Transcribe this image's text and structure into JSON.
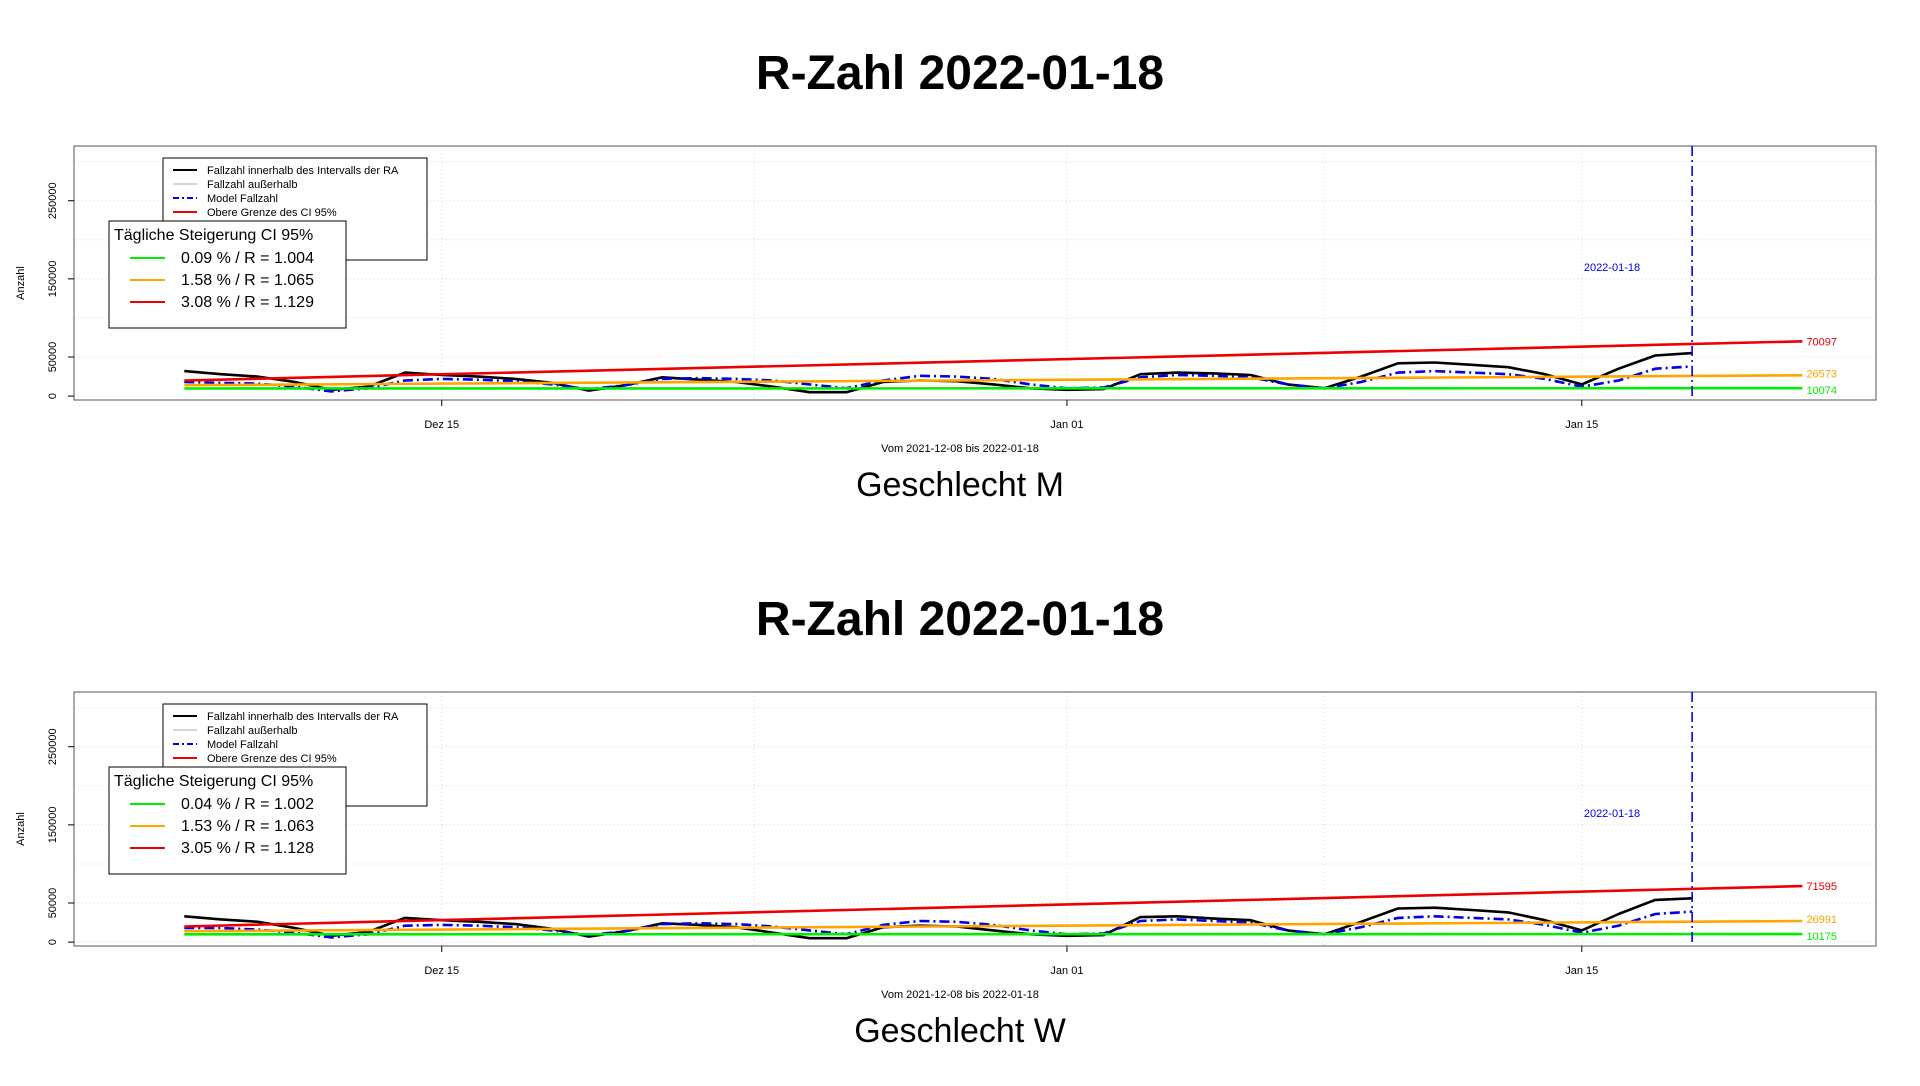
{
  "chart_data": [
    {
      "type": "line",
      "title": "R-Zahl 2022-01-18",
      "subtitle": "Geschlecht M",
      "xlabel": "Vom 2021-12-08 bis 2022-01-18",
      "ylabel": "Anzahl",
      "x_range": [
        "2021-12-05",
        "2022-01-23"
      ],
      "ylim": [
        -5000,
        320000
      ],
      "x_ticks": [
        {
          "date": "2021-12-15",
          "label": "Dez 15"
        },
        {
          "date": "2022-01-01",
          "label": "Jan 01"
        },
        {
          "date": "2022-01-15",
          "label": "Jan 15"
        }
      ],
      "y_ticks": [
        0,
        50000,
        150000,
        250000
      ],
      "grid": true,
      "vline": {
        "date": "2022-01-18",
        "label": "2022-01-18",
        "color": "#0000ee"
      },
      "series": [
        {
          "name": "Fallzahl innerhalb des Intervalls der RA",
          "color": "#000000",
          "style": "solid",
          "x": [
            "2021-12-08",
            "2021-12-09",
            "2021-12-10",
            "2021-12-11",
            "2021-12-12",
            "2021-12-13",
            "2021-12-14",
            "2021-12-15",
            "2021-12-16",
            "2021-12-17",
            "2021-12-18",
            "2021-12-19",
            "2021-12-20",
            "2021-12-21",
            "2021-12-22",
            "2021-12-23",
            "2021-12-24",
            "2021-12-25",
            "2021-12-26",
            "2021-12-27",
            "2021-12-28",
            "2021-12-29",
            "2021-12-30",
            "2021-12-31",
            "2022-01-01",
            "2022-01-02",
            "2022-01-03",
            "2022-01-04",
            "2022-01-05",
            "2022-01-06",
            "2022-01-07",
            "2022-01-08",
            "2022-01-09",
            "2022-01-10",
            "2022-01-11",
            "2022-01-12",
            "2022-01-13",
            "2022-01-14",
            "2022-01-15",
            "2022-01-16",
            "2022-01-17",
            "2022-01-18"
          ],
          "y": [
            32000,
            28000,
            25000,
            18000,
            8000,
            12000,
            30000,
            27000,
            25000,
            22000,
            17000,
            7000,
            14000,
            24000,
            21000,
            18000,
            12000,
            5000,
            5000,
            18000,
            20000,
            19000,
            15000,
            10000,
            8000,
            9000,
            28000,
            30000,
            29000,
            27000,
            15000,
            10000,
            25000,
            42000,
            43000,
            40000,
            37000,
            28000,
            15000,
            35000,
            52000,
            55000
          ]
        },
        {
          "name": "Fallzahl außerhalb",
          "color": "#aaaaaa",
          "style": "solid",
          "x": [],
          "y": []
        },
        {
          "name": "Model Fallzahl",
          "color": "#0000ee",
          "style": "dashdot",
          "x": [
            "2021-12-08",
            "2021-12-09",
            "2021-12-10",
            "2021-12-11",
            "2021-12-12",
            "2021-12-13",
            "2021-12-14",
            "2021-12-15",
            "2021-12-16",
            "2021-12-17",
            "2021-12-18",
            "2021-12-19",
            "2021-12-20",
            "2021-12-21",
            "2021-12-22",
            "2021-12-23",
            "2021-12-24",
            "2021-12-25",
            "2021-12-26",
            "2021-12-27",
            "2021-12-28",
            "2021-12-29",
            "2021-12-30",
            "2021-12-31",
            "2022-01-01",
            "2022-01-02",
            "2022-01-03",
            "2022-01-04",
            "2022-01-05",
            "2022-01-06",
            "2022-01-07",
            "2022-01-08",
            "2022-01-09",
            "2022-01-10",
            "2022-01-11",
            "2022-01-12",
            "2022-01-13",
            "2022-01-14",
            "2022-01-15",
            "2022-01-16",
            "2022-01-17",
            "2022-01-18"
          ],
          "y": [
            18000,
            17000,
            16000,
            12000,
            6000,
            10000,
            20000,
            22000,
            21000,
            19000,
            15000,
            9000,
            14000,
            22000,
            23000,
            22000,
            20000,
            15000,
            10000,
            20000,
            26000,
            25000,
            22000,
            15000,
            10000,
            11000,
            24000,
            27000,
            26000,
            24000,
            15000,
            10000,
            18000,
            30000,
            32000,
            30000,
            28000,
            22000,
            12000,
            20000,
            35000,
            38000
          ]
        },
        {
          "name": "Obere Grenze des CI 95%",
          "color": "#ee0000",
          "style": "solid",
          "x": [
            "2021-12-08",
            "2022-01-21"
          ],
          "y": [
            20000,
            70097
          ]
        },
        {
          "name": "0.09 % / R = 1.004",
          "color": "#00ee00",
          "style": "solid",
          "x": [
            "2021-12-08",
            "2022-01-21"
          ],
          "y": [
            9700,
            10074
          ]
        },
        {
          "name": "1.58 % / R = 1.065",
          "color": "#ffa500",
          "style": "solid",
          "x": [
            "2021-12-08",
            "2022-01-21"
          ],
          "y": [
            14000,
            26573
          ]
        },
        {
          "name": "3.08 % / R = 1.129",
          "color": "#ee0000",
          "style": "solid",
          "x": [],
          "y": []
        }
      ],
      "end_labels": [
        {
          "value": 70097,
          "text": "70097",
          "color": "#ee0000"
        },
        {
          "value": 26573,
          "text": "26573",
          "color": "#ffa500"
        },
        {
          "value": 10074,
          "text": "10074",
          "color": "#00ee00"
        }
      ],
      "legend_main": {
        "placement": "top-left",
        "entries": [
          {
            "text": "Fallzahl innerhalb des Intervalls der RA",
            "color": "#000000",
            "style": "solid"
          },
          {
            "text": "Fallzahl außerhalb",
            "color": "#aaaaaa",
            "style": "solid"
          },
          {
            "text": "Model Fallzahl",
            "color": "#0000ee",
            "style": "dashdot"
          },
          {
            "text": "Obere Grenze des CI 95%",
            "color": "#ee0000",
            "style": "solid"
          }
        ]
      },
      "legend_ci": {
        "title": "Tägliche Steigerung CI  95%",
        "entries": [
          {
            "text": "0.09 % / R = 1.004",
            "color": "#00ee00"
          },
          {
            "text": "1.58 % / R = 1.065",
            "color": "#ffa500"
          },
          {
            "text": "3.08 % / R = 1.129",
            "color": "#ee0000"
          }
        ]
      }
    },
    {
      "type": "line",
      "title": "R-Zahl 2022-01-18",
      "subtitle": "Geschlecht W",
      "xlabel": "Vom 2021-12-08 bis 2022-01-18",
      "ylabel": "Anzahl",
      "x_range": [
        "2021-12-05",
        "2022-01-23"
      ],
      "ylim": [
        -5000,
        320000
      ],
      "x_ticks": [
        {
          "date": "2021-12-15",
          "label": "Dez 15"
        },
        {
          "date": "2022-01-01",
          "label": "Jan 01"
        },
        {
          "date": "2022-01-15",
          "label": "Jan 15"
        }
      ],
      "y_ticks": [
        0,
        50000,
        150000,
        250000
      ],
      "grid": true,
      "vline": {
        "date": "2022-01-18",
        "label": "2022-01-18",
        "color": "#0000ee"
      },
      "series": [
        {
          "name": "Fallzahl innerhalb des Intervalls der RA",
          "color": "#000000",
          "style": "solid",
          "x": [
            "2021-12-08",
            "2021-12-09",
            "2021-12-10",
            "2021-12-11",
            "2021-12-12",
            "2021-12-13",
            "2021-12-14",
            "2021-12-15",
            "2021-12-16",
            "2021-12-17",
            "2021-12-18",
            "2021-12-19",
            "2021-12-20",
            "2021-12-21",
            "2021-12-22",
            "2021-12-23",
            "2021-12-24",
            "2021-12-25",
            "2021-12-26",
            "2021-12-27",
            "2021-12-28",
            "2021-12-29",
            "2021-12-30",
            "2021-12-31",
            "2022-01-01",
            "2022-01-02",
            "2022-01-03",
            "2022-01-04",
            "2022-01-05",
            "2022-01-06",
            "2022-01-07",
            "2022-01-08",
            "2022-01-09",
            "2022-01-10",
            "2022-01-11",
            "2022-01-12",
            "2022-01-13",
            "2022-01-14",
            "2022-01-15",
            "2022-01-16",
            "2022-01-17",
            "2022-01-18"
          ],
          "y": [
            33000,
            29000,
            26000,
            18000,
            8000,
            13000,
            31000,
            28000,
            26000,
            23000,
            17000,
            7000,
            14000,
            24000,
            22000,
            19000,
            12000,
            5000,
            5000,
            19000,
            21000,
            20000,
            15000,
            10000,
            8000,
            9000,
            32000,
            33000,
            30000,
            28000,
            15000,
            10000,
            26000,
            43000,
            44000,
            41000,
            38000,
            28000,
            15000,
            36000,
            54000,
            56000
          ]
        },
        {
          "name": "Fallzahl außerhalb",
          "color": "#aaaaaa",
          "style": "solid",
          "x": [],
          "y": []
        },
        {
          "name": "Model Fallzahl",
          "color": "#0000ee",
          "style": "dashdot",
          "x": [
            "2021-12-08",
            "2021-12-09",
            "2021-12-10",
            "2021-12-11",
            "2021-12-12",
            "2021-12-13",
            "2021-12-14",
            "2021-12-15",
            "2021-12-16",
            "2021-12-17",
            "2021-12-18",
            "2021-12-19",
            "2021-12-20",
            "2021-12-21",
            "2021-12-22",
            "2021-12-23",
            "2021-12-24",
            "2021-12-25",
            "2021-12-26",
            "2021-12-27",
            "2021-12-28",
            "2021-12-29",
            "2021-12-30",
            "2021-12-31",
            "2022-01-01",
            "2022-01-02",
            "2022-01-03",
            "2022-01-04",
            "2022-01-05",
            "2022-01-06",
            "2022-01-07",
            "2022-01-08",
            "2022-01-09",
            "2022-01-10",
            "2022-01-11",
            "2022-01-12",
            "2022-01-13",
            "2022-01-14",
            "2022-01-15",
            "2022-01-16",
            "2022-01-17",
            "2022-01-18"
          ],
          "y": [
            18000,
            18000,
            16000,
            12000,
            6000,
            10000,
            21000,
            22000,
            21000,
            19000,
            15000,
            9000,
            14000,
            23000,
            24000,
            23000,
            20000,
            15000,
            10000,
            22000,
            27000,
            26000,
            22000,
            15000,
            10000,
            11000,
            27000,
            29000,
            27000,
            25000,
            15000,
            10000,
            19000,
            31000,
            33000,
            31000,
            29000,
            22000,
            12000,
            21000,
            36000,
            39000
          ]
        },
        {
          "name": "Obere Grenze des CI 95%",
          "color": "#ee0000",
          "style": "solid",
          "x": [
            "2021-12-08",
            "2022-01-21"
          ],
          "y": [
            20000,
            71595
          ]
        },
        {
          "name": "0.04 % / R = 1.002",
          "color": "#00ee00",
          "style": "solid",
          "x": [
            "2021-12-08",
            "2022-01-21"
          ],
          "y": [
            10000,
            10175
          ]
        },
        {
          "name": "1.53 % / R = 1.063",
          "color": "#ffa500",
          "style": "solid",
          "x": [
            "2021-12-08",
            "2022-01-21"
          ],
          "y": [
            14000,
            26991
          ]
        },
        {
          "name": "3.05 % / R = 1.128",
          "color": "#ee0000",
          "style": "solid",
          "x": [],
          "y": []
        }
      ],
      "end_labels": [
        {
          "value": 71595,
          "text": "71595",
          "color": "#ee0000"
        },
        {
          "value": 26991,
          "text": "26991",
          "color": "#ffa500"
        },
        {
          "value": 10175,
          "text": "10175",
          "color": "#00ee00"
        }
      ],
      "legend_main": {
        "placement": "top-left",
        "entries": [
          {
            "text": "Fallzahl innerhalb des Intervalls der RA",
            "color": "#000000",
            "style": "solid"
          },
          {
            "text": "Fallzahl außerhalb",
            "color": "#aaaaaa",
            "style": "solid"
          },
          {
            "text": "Model Fallzahl",
            "color": "#0000ee",
            "style": "dashdot"
          },
          {
            "text": "Obere Grenze des CI 95%",
            "color": "#ee0000",
            "style": "solid"
          }
        ]
      },
      "legend_ci": {
        "title": "Tägliche Steigerung CI  95%",
        "entries": [
          {
            "text": "0.04 % / R = 1.002",
            "color": "#00ee00"
          },
          {
            "text": "1.53 % / R = 1.063",
            "color": "#ffa500"
          },
          {
            "text": "3.05 % / R = 1.128",
            "color": "#ee0000"
          }
        ]
      }
    }
  ]
}
